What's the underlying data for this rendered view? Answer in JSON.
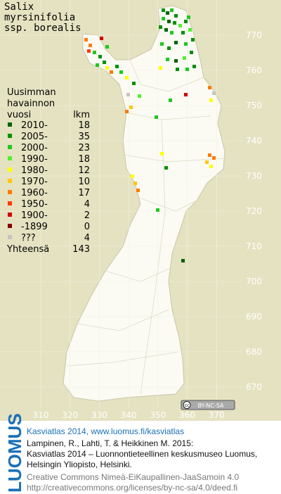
{
  "title": [
    "Salix",
    "myrsinifolia",
    "ssp. borealis"
  ],
  "legend": {
    "header": [
      "Uusimman",
      "havainnon",
      "vuosi"
    ],
    "count_header": "lkm",
    "items": [
      {
        "period": "2010-",
        "count": 18,
        "color": "#006400"
      },
      {
        "period": "2005-",
        "count": 35,
        "color": "#009100"
      },
      {
        "period": "2000-",
        "count": 23,
        "color": "#1fc81f"
      },
      {
        "period": "1990-",
        "count": 18,
        "color": "#50f030"
      },
      {
        "period": "1980-",
        "count": 12,
        "color": "#ffff00"
      },
      {
        "period": "1970-",
        "count": 10,
        "color": "#ffc800"
      },
      {
        "period": "1960-",
        "count": 17,
        "color": "#ff7a00"
      },
      {
        "period": "1950-",
        "count": 4,
        "color": "#ff3a00"
      },
      {
        "period": "1900-",
        "count": 2,
        "color": "#d00000"
      },
      {
        "period": "-1899",
        "count": 0,
        "color": "#820000"
      },
      {
        "period": "???",
        "count": 4,
        "color": "#c4c4c4"
      }
    ],
    "total_label": "Yhteensä",
    "total": 143
  },
  "northing_ticks": [
    770,
    760,
    750,
    740,
    730,
    720,
    710,
    700,
    690,
    680,
    670
  ],
  "easting_ticks": [
    310,
    320,
    330,
    340,
    350,
    360,
    370
  ],
  "license_badge": "BY-NC-SA",
  "footer": {
    "logo": "LUOMUS",
    "heading": "Kasviatlas 2014, www.luomus.fi/kasviatlas",
    "citation": [
      "Lampinen, R., Lahti, T. & Heikkinen M. 2015:",
      "Kasviatlas 2014 – Luonnontieteellinen keskusmuseo Luomus,",
      "Helsingin Yliopisto, Helsinki."
    ],
    "license": [
      "Creative Commons Nimeä-EiKaupallinen-JaaSamoin 4.0",
      "http://creativecommons.org/licenses/by-nc-sa/4.0/deed.fi"
    ]
  }
}
